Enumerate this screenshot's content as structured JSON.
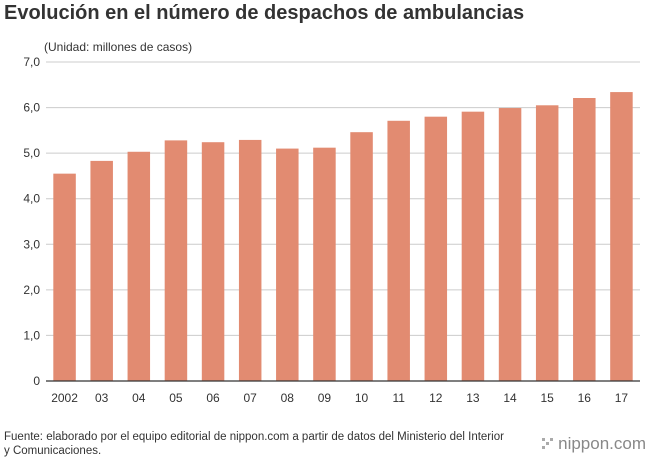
{
  "title": "Evolución en el número de despachos de ambulancias",
  "unit_label": "(Unidad: millones de casos)",
  "source": "Fuente: elaborado por el equipo editorial de nippon.com a partir de datos del Ministerio del Interior y Comunicaciones.",
  "logo": {
    "text": "nippon.com",
    "icon": "nippon-logo-icon"
  },
  "colors": {
    "bar": "#e28b71",
    "grid": "#cccccc",
    "axis": "#333333",
    "text": "#333333",
    "logo": "#888888"
  },
  "chart_data": {
    "type": "bar",
    "title": "Evolución en el número de despachos de ambulancias",
    "xlabel": "",
    "ylabel": "(Unidad: millones de casos)",
    "categories": [
      "2002",
      "03",
      "04",
      "05",
      "06",
      "07",
      "08",
      "09",
      "10",
      "11",
      "12",
      "13",
      "14",
      "15",
      "16",
      "17"
    ],
    "values": [
      4.55,
      4.83,
      5.03,
      5.28,
      5.24,
      5.29,
      5.1,
      5.12,
      5.46,
      5.71,
      5.8,
      5.91,
      5.99,
      6.05,
      6.21,
      6.34
    ],
    "ylim": [
      0,
      7
    ],
    "yticks": [
      0,
      1,
      2,
      3,
      4,
      5,
      6,
      7
    ],
    "ytick_labels": [
      "0",
      "1,0",
      "2,0",
      "3,0",
      "4,0",
      "5,0",
      "6,0",
      "7,0"
    ],
    "grid": true,
    "legend": "none"
  }
}
